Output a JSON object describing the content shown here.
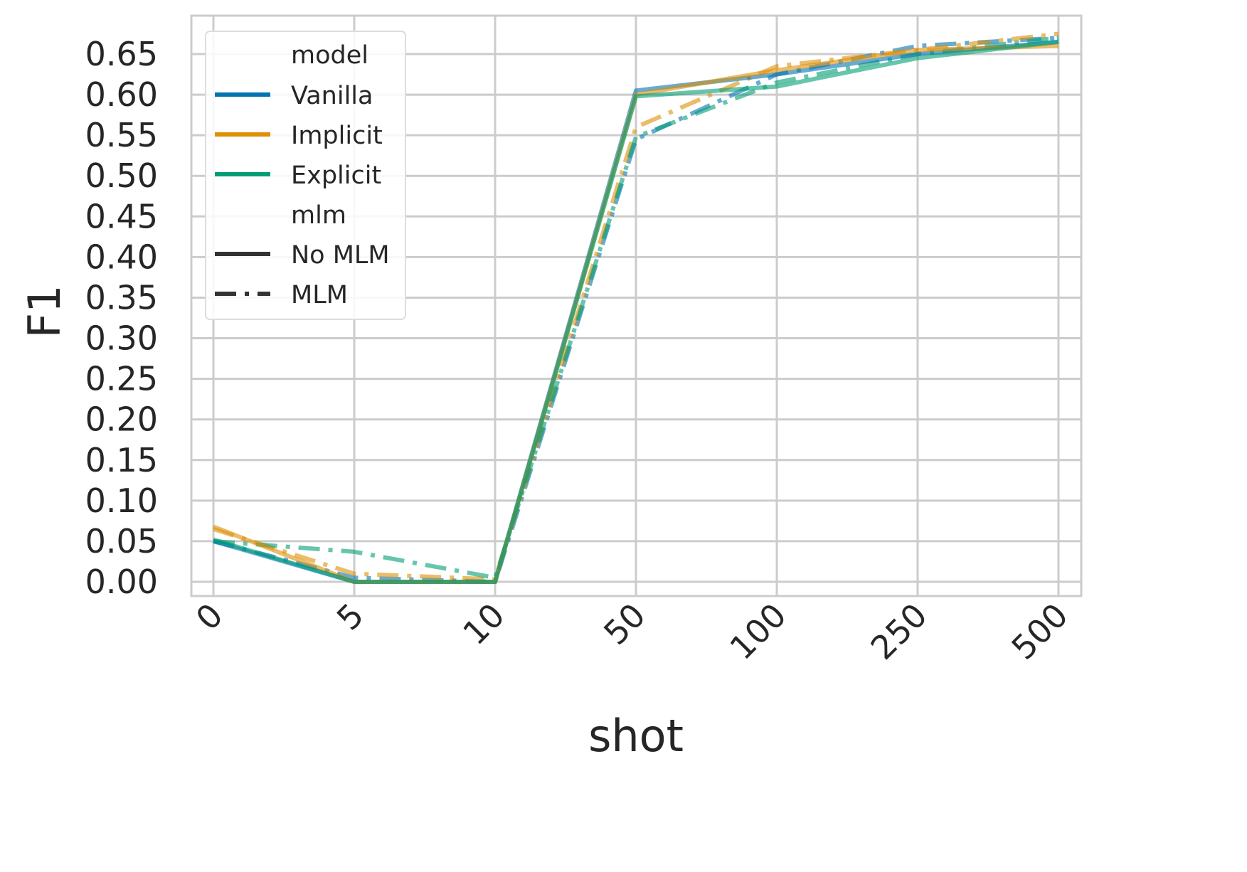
{
  "chart_data": {
    "type": "line",
    "xlabel": "shot",
    "ylabel": "F1",
    "categories": [
      "0",
      "5",
      "10",
      "50",
      "100",
      "250",
      "500"
    ],
    "y_ticks": [
      "0.00",
      "0.05",
      "0.10",
      "0.15",
      "0.20",
      "0.25",
      "0.30",
      "0.35",
      "0.40",
      "0.45",
      "0.50",
      "0.55",
      "0.60",
      "0.65"
    ],
    "ylim": [
      -0.015,
      0.695
    ],
    "grid": true,
    "legend_position": "top-left",
    "legend": {
      "hue_title": "model",
      "style_title": "mlm",
      "models": [
        {
          "name": "Vanilla",
          "color": "#0173b2"
        },
        {
          "name": "Implicit",
          "color": "#de8f05"
        },
        {
          "name": "Explicit",
          "color": "#029e73"
        }
      ],
      "styles": [
        {
          "name": "No MLM",
          "dash": "solid"
        },
        {
          "name": "MLM",
          "dash": "dashdot"
        }
      ]
    },
    "series": [
      {
        "model": "Vanilla",
        "mlm": "No MLM",
        "color": "#0173b2",
        "dash": "solid",
        "values": [
          0.05,
          0.0,
          0.0,
          0.605,
          0.625,
          0.65,
          0.665
        ]
      },
      {
        "model": "Implicit",
        "mlm": "No MLM",
        "color": "#de8f05",
        "dash": "solid",
        "values": [
          0.068,
          0.0,
          0.0,
          0.6,
          0.63,
          0.655,
          0.66
        ]
      },
      {
        "model": "Explicit",
        "mlm": "No MLM",
        "color": "#029e73",
        "dash": "solid",
        "values": [
          0.052,
          0.0,
          0.0,
          0.598,
          0.61,
          0.645,
          0.665
        ]
      },
      {
        "model": "Vanilla",
        "mlm": "MLM",
        "color": "#0173b2",
        "dash": "dashdot",
        "values": [
          0.05,
          0.005,
          0.0,
          0.545,
          0.625,
          0.66,
          0.67
        ]
      },
      {
        "model": "Implicit",
        "mlm": "MLM",
        "color": "#de8f05",
        "dash": "dashdot",
        "values": [
          0.065,
          0.01,
          0.003,
          0.56,
          0.635,
          0.655,
          0.675
        ]
      },
      {
        "model": "Explicit",
        "mlm": "MLM",
        "color": "#029e73",
        "dash": "dashdot",
        "values": [
          0.05,
          0.037,
          0.005,
          0.548,
          0.615,
          0.65,
          0.67
        ]
      }
    ]
  }
}
